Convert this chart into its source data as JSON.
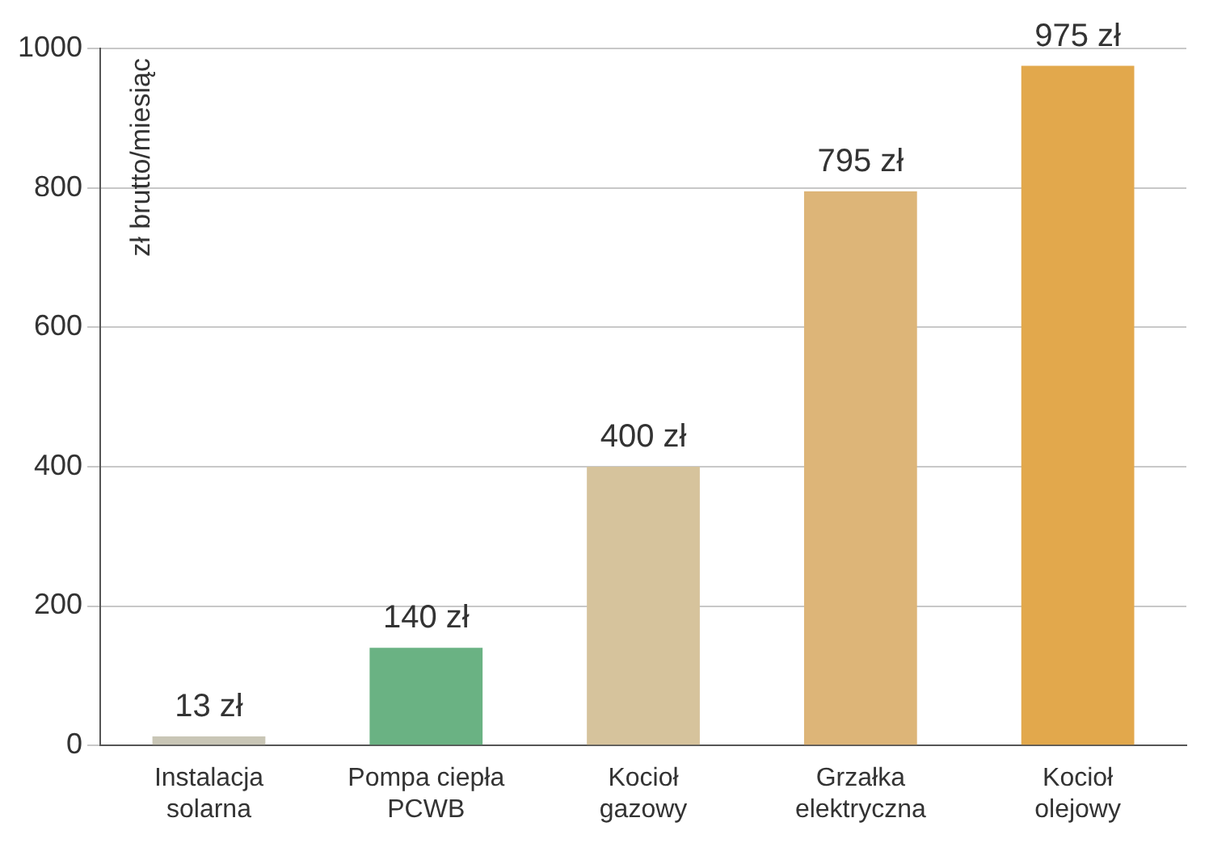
{
  "chart_data": {
    "type": "bar",
    "ylabel": "zł brutto/miesiąc",
    "categories": [
      "Instalacja solarna",
      "Pompa ciepła PCWB",
      "Kocioł gazowy",
      "Grzałka elektryczna",
      "Kocioł olejowy"
    ],
    "values": [
      13,
      140,
      400,
      795,
      975
    ],
    "value_labels": [
      "13 zł",
      "140 zł",
      "400 zł",
      "795 zł",
      "975 zł"
    ],
    "colors": [
      "#c9c6b6",
      "#6ab283",
      "#d6c39c",
      "#ddb578",
      "#e2a84c"
    ],
    "ylim": [
      0,
      1000
    ],
    "yticks": [
      0,
      200,
      400,
      600,
      800,
      1000
    ],
    "grid": "y",
    "legend": false
  }
}
